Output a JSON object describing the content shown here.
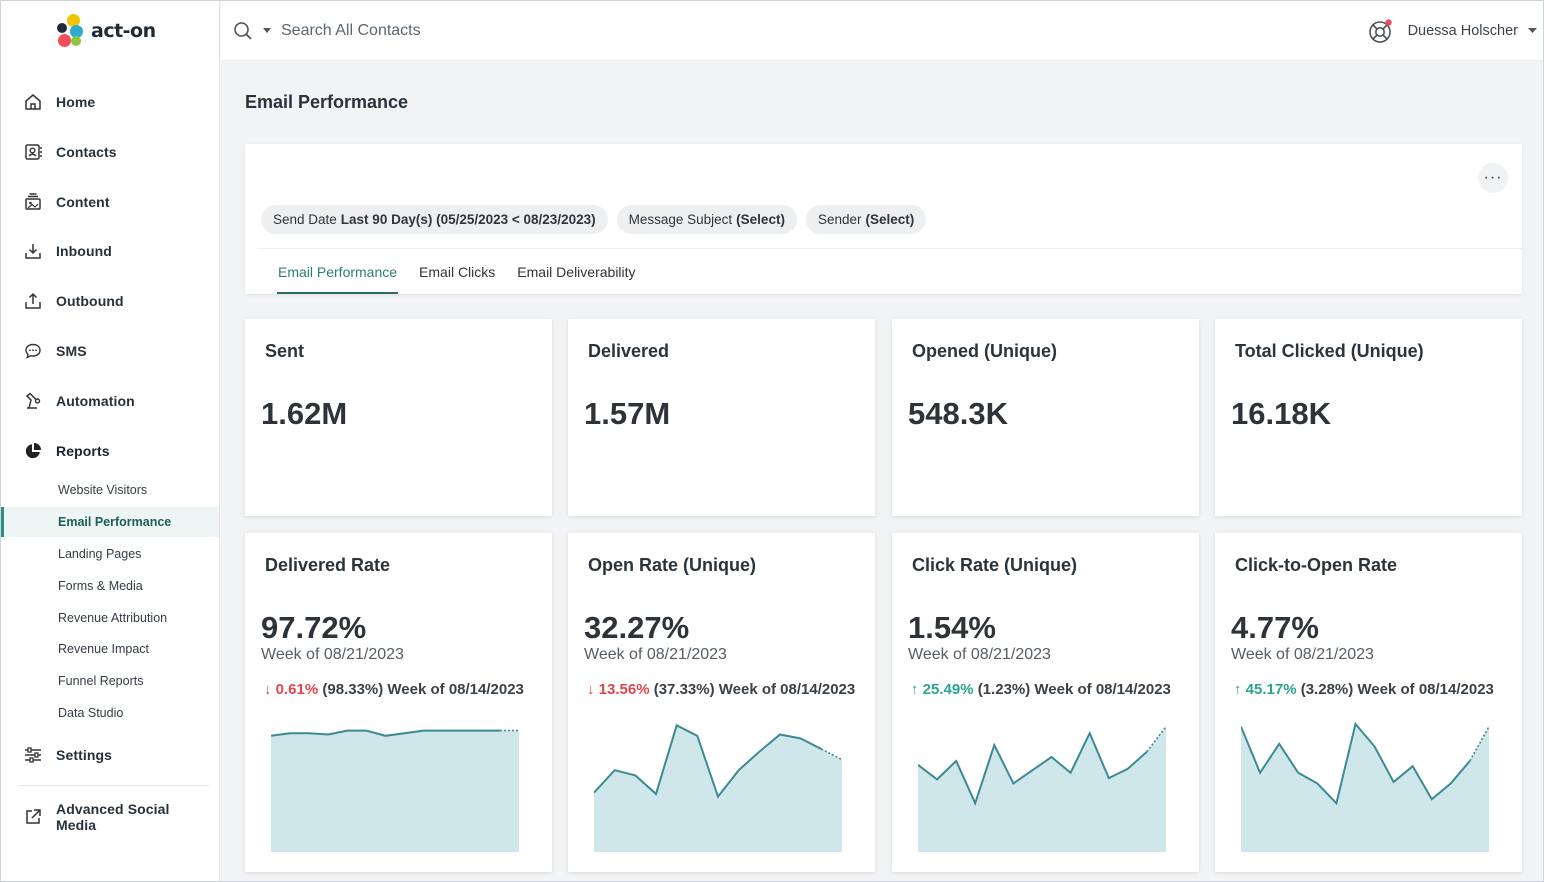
{
  "app": {
    "logo_text": "act-on"
  },
  "sidebar": {
    "items": [
      {
        "label": "Home",
        "icon": "home-icon"
      },
      {
        "label": "Contacts",
        "icon": "contacts-icon"
      },
      {
        "label": "Content",
        "icon": "content-icon"
      },
      {
        "label": "Inbound",
        "icon": "inbound-icon"
      },
      {
        "label": "Outbound",
        "icon": "outbound-icon"
      },
      {
        "label": "SMS",
        "icon": "sms-icon"
      },
      {
        "label": "Automation",
        "icon": "automation-icon"
      },
      {
        "label": "Reports",
        "icon": "reports-icon"
      }
    ],
    "report_subitems": [
      {
        "label": "Website Visitors"
      },
      {
        "label": "Email Performance",
        "active": true
      },
      {
        "label": "Landing Pages"
      },
      {
        "label": "Forms & Media"
      },
      {
        "label": "Revenue Attribution"
      },
      {
        "label": "Revenue Impact"
      },
      {
        "label": "Funnel Reports"
      },
      {
        "label": "Data Studio"
      }
    ],
    "settings": {
      "label": "Settings",
      "icon": "settings-icon"
    },
    "advanced": {
      "label_line1": "Advanced Social",
      "label_line2": "Media",
      "icon": "external-link-icon"
    }
  },
  "header": {
    "search_placeholder": "Search All Contacts",
    "user_name": "Duessa Holscher"
  },
  "page": {
    "title": "Email Performance",
    "filters": [
      {
        "prefix": "Send Date",
        "value": "Last 90 Day(s) (05/25/2023 < 08/23/2023)"
      },
      {
        "prefix": "Message Subject",
        "value": "(Select)"
      },
      {
        "prefix": "Sender",
        "value": "(Select)"
      }
    ],
    "tabs": [
      {
        "label": "Email Performance",
        "active": true
      },
      {
        "label": "Email Clicks"
      },
      {
        "label": "Email Deliverability"
      }
    ],
    "more_label": "···"
  },
  "metrics": [
    {
      "title": "Sent",
      "value": "1.62M"
    },
    {
      "title": "Delivered",
      "value": "1.57M"
    },
    {
      "title": "Opened (Unique)",
      "value": "548.3K"
    },
    {
      "title": "Total Clicked (Unique)",
      "value": "16.18K"
    }
  ],
  "rates": [
    {
      "title": "Delivered Rate",
      "value": "97.72%",
      "week": "Week of 08/21/2023",
      "arrow": "↓",
      "direction": "down",
      "change": "0.61%",
      "prev": "(98.33%) Week of 08/14/2023",
      "spark": [
        0.88,
        0.9,
        0.9,
        0.89,
        0.92,
        0.92,
        0.88,
        0.9,
        0.92,
        0.92,
        0.92,
        0.92,
        0.92,
        0.92
      ]
    },
    {
      "title": "Open Rate (Unique)",
      "value": "32.27%",
      "week": "Week of 08/21/2023",
      "arrow": "↓",
      "direction": "down",
      "change": "13.56%",
      "prev": "(37.33%) Week of 08/14/2023",
      "spark": [
        0.45,
        0.62,
        0.58,
        0.44,
        0.96,
        0.88,
        0.42,
        0.62,
        0.76,
        0.89,
        0.86,
        0.78,
        0.7
      ]
    },
    {
      "title": "Click Rate (Unique)",
      "value": "1.54%",
      "week": "Week of 08/21/2023",
      "arrow": "↑",
      "direction": "up",
      "change": "25.49%",
      "prev": "(1.23%) Week of 08/14/2023",
      "spark": [
        0.66,
        0.55,
        0.69,
        0.37,
        0.81,
        0.52,
        0.62,
        0.72,
        0.6,
        0.9,
        0.56,
        0.63,
        0.76,
        0.95
      ]
    },
    {
      "title": "Click-to-Open Rate",
      "value": "4.77%",
      "week": "Week of 08/21/2023",
      "arrow": "↑",
      "direction": "up",
      "change": "45.17%",
      "prev": "(3.28%) Week of 08/14/2023",
      "spark": [
        0.95,
        0.6,
        0.82,
        0.6,
        0.52,
        0.37,
        0.97,
        0.8,
        0.53,
        0.65,
        0.4,
        0.52,
        0.69,
        0.95
      ]
    }
  ],
  "colors": {
    "accent": "#2a7e78",
    "spark_fill": "#cfe7ea",
    "spark_line": "#3c8a92",
    "down": "#e0474c",
    "up": "#2aa590"
  }
}
